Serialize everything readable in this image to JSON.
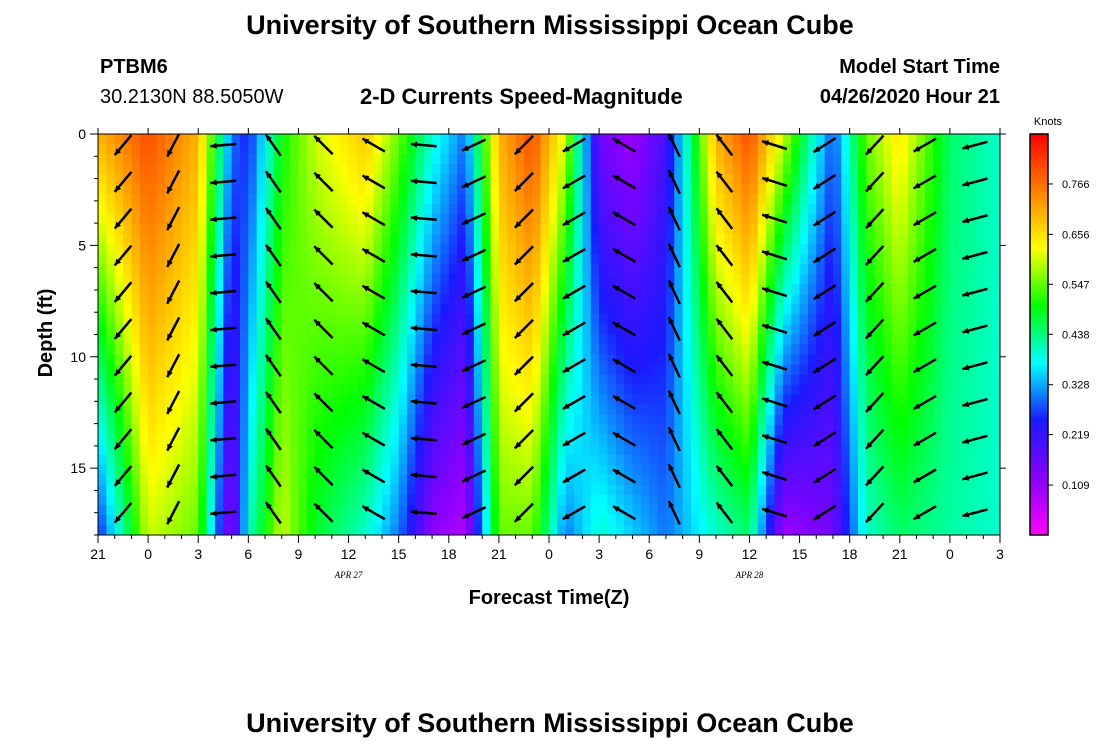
{
  "header": {
    "title": "University of Southern Mississippi Ocean Cube",
    "station_id": "PTBM6",
    "station_coords": "30.2130N 88.5050W",
    "plot_title": "2-D Currents Speed-Magnitude",
    "model_start_label": "Model Start Time",
    "model_start_value": "04/26/2020 Hour 21"
  },
  "footer": {
    "title": "University of Southern Mississippi Ocean Cube"
  },
  "chart_data": {
    "type": "heatmap",
    "title": "2-D Currents Speed-Magnitude",
    "xlabel": "Forecast Time(Z)",
    "ylabel": "Depth (ft)",
    "x_tick_labels": [
      "21",
      "0",
      "3",
      "6",
      "9",
      "12",
      "15",
      "18",
      "21",
      "0",
      "3",
      "6",
      "9",
      "12",
      "15",
      "18",
      "21",
      "0",
      "3"
    ],
    "x_range_hours_from_start": [
      0,
      54
    ],
    "date_labels": [
      {
        "text": "APR 27",
        "hour": 15
      },
      {
        "text": "APR 28",
        "hour": 39
      }
    ],
    "y_ticks": [
      0,
      5,
      10,
      15
    ],
    "y_range": [
      0,
      18
    ],
    "y_inverted": true,
    "colorbar": {
      "unit": "Knots",
      "ticks": [
        "0.766",
        "0.656",
        "0.547",
        "0.438",
        "0.328",
        "0.219",
        "0.109"
      ],
      "range": [
        0,
        0.875
      ],
      "colors": [
        "#ff00ff",
        "#8800ff",
        "#1a1aff",
        "#00ffff",
        "#00ff00",
        "#ffff00",
        "#ff8000",
        "#ff0000"
      ]
    },
    "speed_profile_knots": [
      {
        "hour": 0,
        "surface": 0.7,
        "bottom": 0.25
      },
      {
        "hour": 3,
        "surface": 0.8,
        "bottom": 0.6
      },
      {
        "hour": 6,
        "surface": 0.7,
        "bottom": 0.55
      },
      {
        "hour": 8,
        "surface": 0.3,
        "bottom": 0.1
      },
      {
        "hour": 9,
        "surface": 0.25,
        "bottom": 0.4
      },
      {
        "hour": 11,
        "surface": 0.5,
        "bottom": 0.6
      },
      {
        "hour": 13,
        "surface": 0.6,
        "bottom": 0.48
      },
      {
        "hour": 16,
        "surface": 0.68,
        "bottom": 0.4
      },
      {
        "hour": 18,
        "surface": 0.55,
        "bottom": 0.3
      },
      {
        "hour": 20,
        "surface": 0.4,
        "bottom": 0.12
      },
      {
        "hour": 22,
        "surface": 0.3,
        "bottom": 0.08
      },
      {
        "hour": 24,
        "surface": 0.7,
        "bottom": 0.55
      },
      {
        "hour": 26,
        "surface": 0.8,
        "bottom": 0.55
      },
      {
        "hour": 28,
        "surface": 0.6,
        "bottom": 0.3
      },
      {
        "hour": 30,
        "surface": 0.15,
        "bottom": 0.4
      },
      {
        "hour": 32,
        "surface": 0.1,
        "bottom": 0.35
      },
      {
        "hour": 34,
        "surface": 0.2,
        "bottom": 0.3
      },
      {
        "hour": 37,
        "surface": 0.7,
        "bottom": 0.4
      },
      {
        "hour": 39,
        "surface": 0.8,
        "bottom": 0.45
      },
      {
        "hour": 41,
        "surface": 0.6,
        "bottom": 0.1
      },
      {
        "hour": 44,
        "surface": 0.28,
        "bottom": 0.15
      },
      {
        "hour": 46,
        "surface": 0.55,
        "bottom": 0.4
      },
      {
        "hour": 48,
        "surface": 0.65,
        "bottom": 0.45
      },
      {
        "hour": 51,
        "surface": 0.45,
        "bottom": 0.42
      },
      {
        "hour": 54,
        "surface": 0.4,
        "bottom": 0.4
      }
    ],
    "vector_direction_profile_deg": [
      {
        "hour": 0,
        "dir": 225
      },
      {
        "hour": 3,
        "dir": 215
      },
      {
        "hour": 6,
        "dir": 200
      },
      {
        "hour": 9,
        "dir": 330
      },
      {
        "hour": 12,
        "dir": 320
      },
      {
        "hour": 15,
        "dir": 310
      },
      {
        "hour": 18,
        "dir": 290
      },
      {
        "hour": 21,
        "dir": 260
      },
      {
        "hour": 24,
        "dir": 230
      },
      {
        "hour": 27,
        "dir": 220
      },
      {
        "hour": 30,
        "dir": 260
      },
      {
        "hour": 33,
        "dir": 340
      },
      {
        "hour": 36,
        "dir": 330
      },
      {
        "hour": 39,
        "dir": 315
      },
      {
        "hour": 42,
        "dir": 260
      },
      {
        "hour": 45,
        "dir": 215
      },
      {
        "hour": 48,
        "dir": 230
      },
      {
        "hour": 51,
        "dir": 250
      },
      {
        "hour": 54,
        "dir": 260
      }
    ]
  }
}
